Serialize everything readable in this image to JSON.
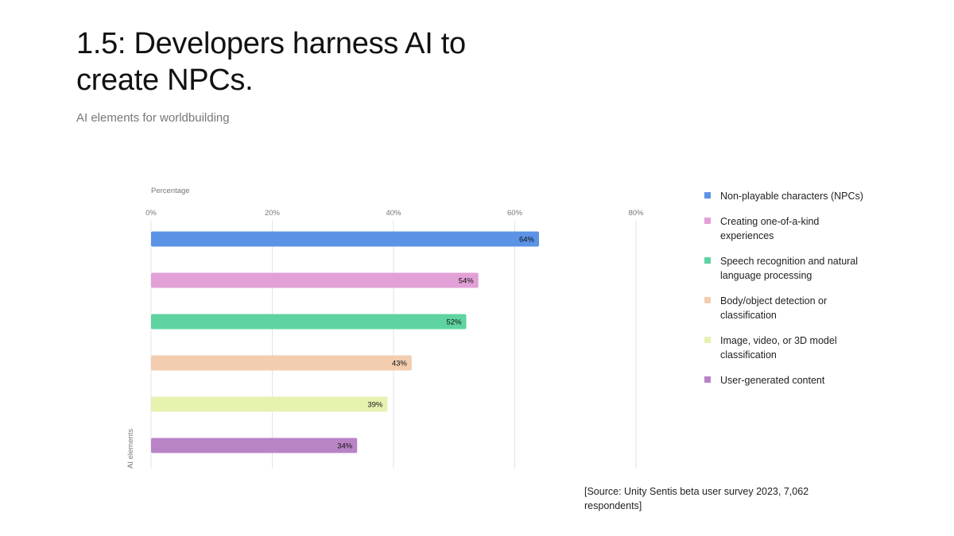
{
  "header": {
    "title": "1.5: Developers harness AI to create NPCs.",
    "subtitle": "AI elements for worldbuilding"
  },
  "source": "[Source: Unity Sentis beta user survey 2023, 7,062 respondents]",
  "chart_data": {
    "type": "bar",
    "orientation": "horizontal",
    "xlabel": "Percentage",
    "ylabel": "AI elements",
    "xlim": [
      0,
      80
    ],
    "x_ticks": [
      "0%",
      "20%",
      "40%",
      "60%",
      "80%"
    ],
    "x_tick_values": [
      0,
      20,
      40,
      60,
      80
    ],
    "grid": true,
    "legend_position": "right",
    "categories": [
      "Non-playable characters (NPCs)",
      "Creating one-of-a-kind experiences",
      "Speech recognition and natural language processing",
      "Body/object detection or classification",
      "Image, video, or 3D model classification",
      "User-generated content"
    ],
    "values": [
      64,
      54,
      52,
      43,
      39,
      34
    ],
    "value_labels": [
      "64%",
      "54%",
      "52%",
      "43%",
      "39%",
      "34%"
    ],
    "colors": [
      "#5b93e6",
      "#e2a1d6",
      "#5fd3a0",
      "#f2cdb0",
      "#e6f2b0",
      "#b884c6"
    ]
  }
}
